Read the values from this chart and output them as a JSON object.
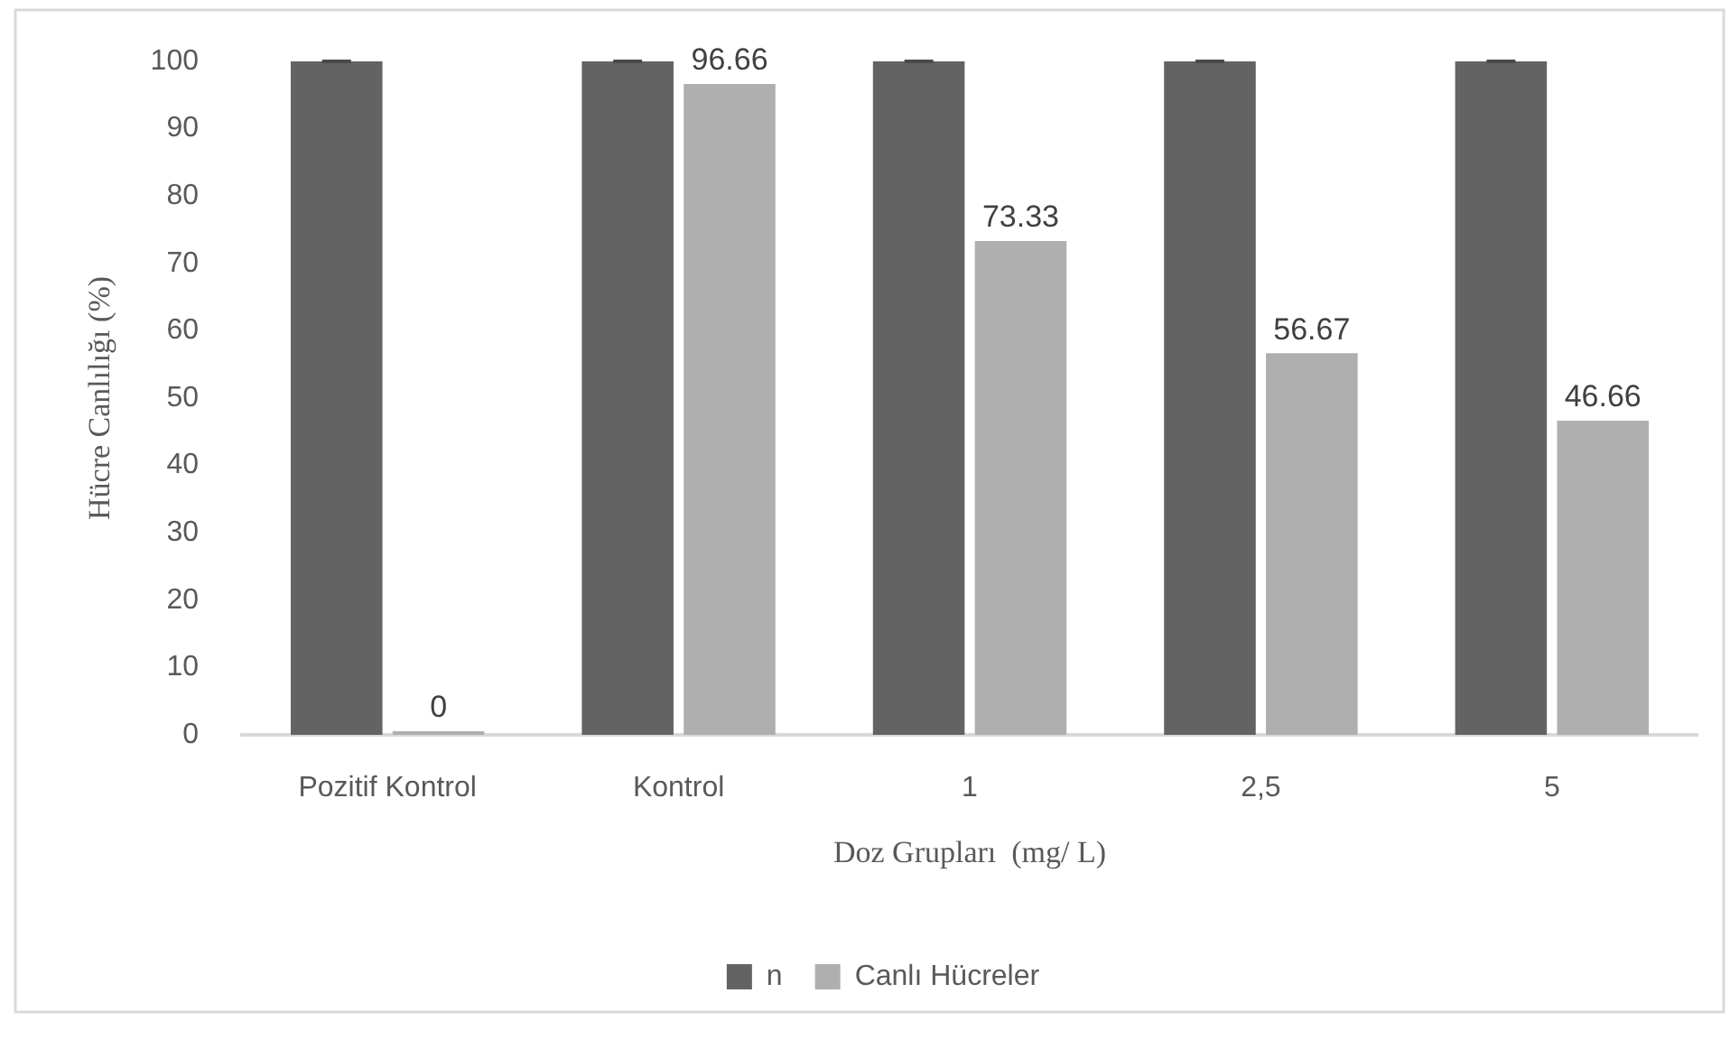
{
  "chart_data": {
    "type": "bar",
    "categories": [
      "Pozitif Kontrol",
      "Kontrol",
      "1",
      "2,5",
      "5"
    ],
    "series": [
      {
        "name": "n",
        "color": "#636363",
        "values": [
          100,
          100,
          100,
          100,
          100
        ],
        "errors": [
          0,
          0,
          0,
          0,
          0
        ]
      },
      {
        "name": "Canlı Hücreler",
        "color": "#afafaf",
        "values": [
          0,
          96.66,
          73.33,
          56.67,
          46.66
        ],
        "value_labels": [
          "0",
          "96.66",
          "73.33",
          "56.67",
          "46.66"
        ]
      }
    ],
    "xlabel": "Doz Grupları  (mg/ L)",
    "ylabel": "Hücre Canlılığı (%)",
    "ylim": [
      0,
      100
    ],
    "yticks": [
      0,
      10,
      20,
      30,
      40,
      50,
      60,
      70,
      80,
      90,
      100
    ],
    "grid": false,
    "legend": "bottom"
  }
}
